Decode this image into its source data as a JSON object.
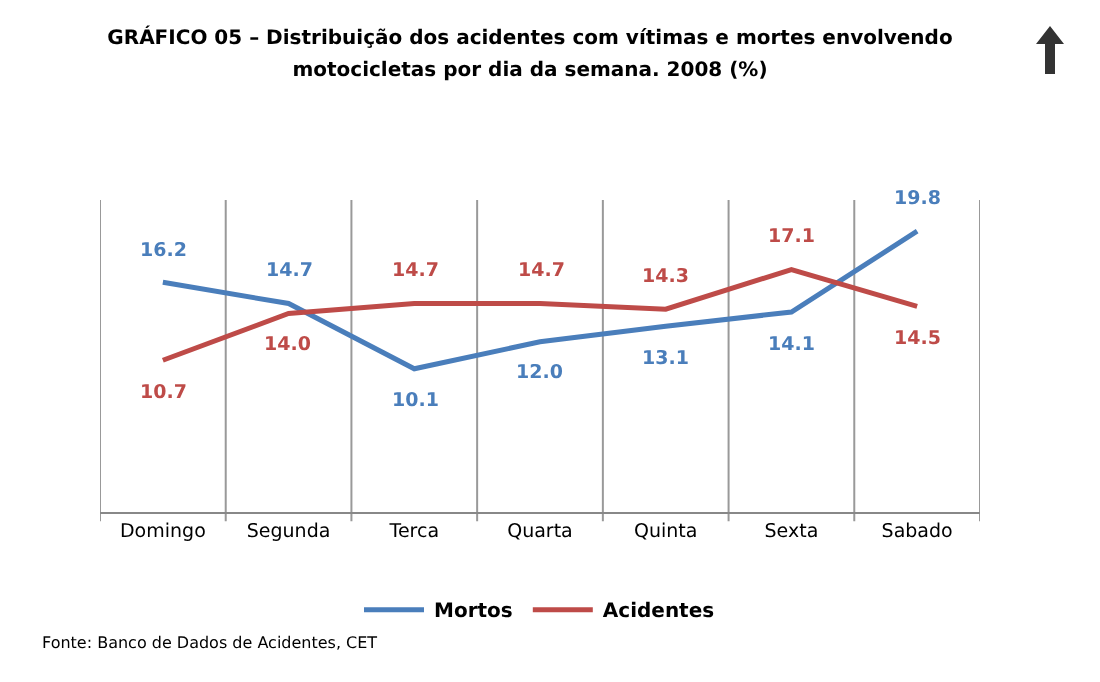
{
  "chart_data": {
    "type": "line",
    "title": "GRÁFICO 05 – Distribuição dos acidentes com vítimas e mortes envolvendo motocicletas por dia da semana. 2008 (%)",
    "categories": [
      "Domingo",
      "Segunda",
      "Terca",
      "Quarta",
      "Quinta",
      "Sexta",
      "Sabado"
    ],
    "series": [
      {
        "name": "Mortos",
        "color": "#4a7ebb",
        "values": [
          16.2,
          14.7,
          10.1,
          12.0,
          13.1,
          14.1,
          19.8
        ],
        "value_labels": [
          "16.2",
          "14.7",
          "10.1",
          "12.0",
          "13.1",
          "14.1",
          "19.8"
        ]
      },
      {
        "name": "Acidentes",
        "color": "#be4b48",
        "values": [
          10.7,
          14.0,
          14.7,
          14.7,
          14.3,
          17.1,
          14.5
        ],
        "value_labels": [
          "10.7",
          "14.0",
          "14.7",
          "14.7",
          "14.3",
          "17.1",
          "14.5"
        ]
      }
    ],
    "ylim": [
      0,
      22
    ],
    "grid": "x",
    "legend": "bottom",
    "marker": "none",
    "line_style": "solid",
    "annotations": [
      "Fonte: Banco de Dados de Acidentes, CET"
    ]
  }
}
